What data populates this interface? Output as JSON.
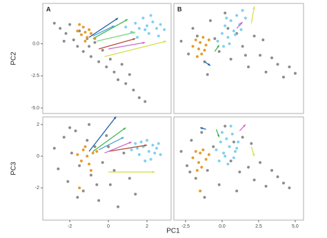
{
  "chart_data": [
    {
      "type": "scatter",
      "label": "A",
      "ylabel": "PC2",
      "xlim": [
        -3.4,
        3.25
      ],
      "ylim": [
        -5.43,
        3.14
      ],
      "yticks": [
        {
          "value": 0,
          "label": "0.0"
        },
        {
          "value": -2.5,
          "label": "-2.5"
        },
        {
          "value": -5,
          "label": "-5.0"
        }
      ],
      "series": [
        {
          "color": "#8c8c8c",
          "x": [
            -2.8,
            -2.5,
            -2.2,
            -2.0,
            -1.8,
            -1.6,
            -1.5,
            -1.3,
            -1.1,
            -0.9,
            -0.7,
            -0.5,
            -0.3,
            -0.1,
            0.1,
            0.3,
            0.5,
            0.7,
            0.9,
            1.1,
            1.3,
            1.6,
            1.9,
            -2.3,
            -1.0
          ],
          "values": [
            1.6,
            1.2,
            0.8,
            1.5,
            0.3,
            -0.2,
            1.0,
            -0.6,
            0.4,
            -1.0,
            0.1,
            -1.4,
            -0.5,
            -1.8,
            -1.2,
            -2.2,
            -2.8,
            -1.6,
            -3.1,
            -2.4,
            -3.6,
            -4.2,
            -4.5,
            0.2,
            -0.2
          ]
        },
        {
          "color": "#e69c2b",
          "x": [
            -1.6,
            -1.4,
            -1.3,
            -1.2,
            -1.1,
            -1.0,
            -0.9,
            -1.5,
            -0.7,
            -1.2
          ],
          "values": [
            1.0,
            0.7,
            1.3,
            0.9,
            0.5,
            1.1,
            0.8,
            1.5,
            0.4,
            0.2
          ]
        },
        {
          "color": "#7fd0f0",
          "x": [
            0.9,
            1.2,
            1.4,
            1.6,
            1.8,
            2.0,
            2.1,
            2.3,
            2.5,
            2.7,
            2.9,
            1.5,
            1.9,
            2.2,
            2.6
          ],
          "values": [
            1.3,
            0.9,
            1.6,
            1.2,
            2.0,
            1.4,
            0.8,
            1.7,
            1.2,
            1.5,
            1.1,
            0.5,
            1.1,
            2.2,
            0.6
          ]
        }
      ],
      "arrows": [
        {
          "color": "#1f5fa8",
          "x": [
            -1,
            0.5
          ],
          "y": [
            0.5,
            2.0
          ]
        },
        {
          "color": "#3cb44b",
          "x": [
            -0.8,
            1.0
          ],
          "y": [
            0.4,
            1.9
          ]
        },
        {
          "color": "#b5473a",
          "x": [
            -0.5,
            1.4
          ],
          "y": [
            -0.4,
            0.4
          ]
        },
        {
          "color": "#cc66cc",
          "x": [
            0,
            1.9
          ],
          "y": [
            -0.4,
            0.1
          ]
        },
        {
          "color": "#d4e04a",
          "x": [
            -0.2,
            3.0
          ],
          "y": [
            -1.0,
            0.2
          ]
        },
        {
          "color": "#7cd67c",
          "x": [
            -0.6,
            1.4
          ],
          "y": [
            0.2,
            0.9
          ]
        },
        {
          "color": "#4c9fd4",
          "x": [
            -0.8,
            0.3
          ],
          "y": [
            0.6,
            1.4
          ]
        }
      ]
    },
    {
      "type": "scatter",
      "label": "B",
      "xlim": [
        -3.3,
        5.57
      ],
      "ylim": [
        -5.43,
        3.14
      ],
      "series": [
        {
          "color": "#8c8c8c",
          "x": [
            -2.8,
            -2.3,
            -2.0,
            -1.7,
            -1.2,
            -0.8,
            -0.5,
            -0.2,
            0.2,
            0.6,
            1.0,
            1.4,
            1.8,
            2.2,
            2.6,
            3.0,
            3.4,
            3.8,
            4.2,
            4.6,
            5.0,
            -1.0,
            0.4,
            1.6,
            2.8
          ],
          "values": [
            0.2,
            -0.8,
            1.2,
            0.6,
            -1.4,
            1.8,
            0.4,
            -0.6,
            2.4,
            -1.2,
            0.8,
            -0.2,
            -1.8,
            0.6,
            -0.9,
            -2.2,
            -1.1,
            -1.6,
            -2.6,
            -1.8,
            -2.3,
            -2.4,
            1.2,
            -0.9,
            0.3
          ]
        },
        {
          "color": "#e69c2b",
          "x": [
            -2.0,
            -1.8,
            -1.6,
            -1.5,
            -1.4,
            -1.3,
            -1.1,
            -1.7,
            -0.9,
            -1.2
          ],
          "values": [
            -0.2,
            0.3,
            -0.4,
            0.1,
            -0.8,
            0.5,
            -0.1,
            -1.0,
            0.3,
            -0.5
          ]
        },
        {
          "color": "#7fd0f0",
          "x": [
            -0.3,
            0,
            0.2,
            0.4,
            0.6,
            0.8,
            1.0,
            1.2,
            1.4,
            1.6,
            0.1,
            0.5,
            0.9,
            1.3,
            0.3
          ],
          "values": [
            0.2,
            0.8,
            1.4,
            0.5,
            1.8,
            1.0,
            2.2,
            1.5,
            2.6,
            2.0,
            -0.2,
            0.0,
            0.7,
            1.1,
            2.0
          ]
        }
      ],
      "arrows": [
        {
          "color": "#d4e04a",
          "x": [
            2.0,
            2.2
          ],
          "y": [
            1.6,
            2.9
          ]
        },
        {
          "color": "#1f5fa8",
          "x": [
            -1.2,
            -0.8
          ],
          "y": [
            -1.4,
            -1.7
          ]
        },
        {
          "color": "#3cb44b",
          "x": [
            -0.5,
            -0.2
          ],
          "y": [
            -0.6,
            -0.1
          ]
        },
        {
          "color": "#cc66cc",
          "x": [
            1.0,
            1.4
          ],
          "y": [
            1.2,
            1.7
          ]
        }
      ]
    },
    {
      "type": "scatter",
      "ylabel": "PC3",
      "xlabel": "PC1",
      "xlim": [
        -3.4,
        3.25
      ],
      "ylim": [
        -4.04,
        2.48
      ],
      "xticks": [
        -2,
        0,
        2
      ],
      "yticks": [
        2,
        0,
        -2
      ],
      "series": [
        {
          "color": "#8c8c8c",
          "x": [
            -2.8,
            -2.6,
            -2.3,
            -2.1,
            -1.9,
            -1.7,
            -1.5,
            -1.3,
            -1.1,
            -0.9,
            -0.7,
            -0.5,
            -0.3,
            -0.1,
            0.1,
            0.3,
            0.5,
            0.8,
            1.1,
            1.4,
            -1.6,
            -0.6,
            0.0,
            -2.0,
            -1.0
          ],
          "values": [
            0.5,
            -0.8,
            1.2,
            -1.6,
            0.2,
            1.6,
            -0.6,
            -2.2,
            1.0,
            -1.2,
            0.6,
            -2.8,
            -0.4,
            1.3,
            -1.8,
            -0.9,
            -3.2,
            0.2,
            -1.4,
            -2.4,
            -2.6,
            -1.8,
            0.6,
            1.8,
            2.0
          ]
        },
        {
          "color": "#e69c2b",
          "x": [
            -1.6,
            -1.4,
            -1.3,
            -1.1,
            -1.0,
            -0.8,
            -0.6,
            -0.9,
            -1.5,
            -1.2
          ],
          "values": [
            0.1,
            -0.3,
            0.4,
            0.0,
            -0.5,
            0.2,
            0.3,
            -0.9,
            -2.0,
            0.6
          ]
        },
        {
          "color": "#7fd0f0",
          "x": [
            1.2,
            1.4,
            1.6,
            1.8,
            2.0,
            2.1,
            2.2,
            2.3,
            2.4,
            2.5,
            2.7,
            1.7,
            1.9,
            2.6,
            1.5
          ],
          "values": [
            0.4,
            0.8,
            0.1,
            0.6,
            1.0,
            0.3,
            -0.2,
            0.7,
            0.2,
            0.5,
            0.1,
            0.9,
            -0.3,
            0.8,
            0.5
          ]
        }
      ],
      "arrows": [
        {
          "color": "#1f5fa8",
          "x": [
            -1.0,
            0.4
          ],
          "y": [
            0.3,
            2.5
          ]
        },
        {
          "color": "#3cb44b",
          "x": [
            -0.8,
            0.9
          ],
          "y": [
            0.3,
            1.8
          ]
        },
        {
          "color": "#b5473a",
          "x": [
            0,
            2.0
          ],
          "y": [
            0.3,
            0.7
          ]
        },
        {
          "color": "#cc66cc",
          "x": [
            -0.2,
            1.2
          ],
          "y": [
            0.2,
            0.9
          ]
        },
        {
          "color": "#d4e04a",
          "x": [
            0,
            2.4
          ],
          "y": [
            -1.0,
            -1.0
          ]
        },
        {
          "color": "#4c9fd4",
          "x": [
            -0.5,
            0.8
          ],
          "y": [
            0.4,
            1.2
          ]
        }
      ]
    },
    {
      "type": "scatter",
      "xlim": [
        -3.3,
        5.57
      ],
      "ylim": [
        -4.04,
        2.48
      ],
      "xticks": [
        {
          "value": -2.5,
          "label": "-2.5"
        },
        {
          "value": 0,
          "label": "0.0"
        },
        {
          "value": 2.5,
          "label": "2.5"
        },
        {
          "value": 5,
          "label": "5.0"
        }
      ],
      "series": [
        {
          "color": "#8c8c8c",
          "x": [
            -2.8,
            -2.4,
            -2.1,
            -1.8,
            -1.4,
            -1.0,
            -0.6,
            -0.2,
            0.2,
            0.6,
            1.0,
            1.4,
            1.8,
            2.2,
            2.6,
            3.0,
            3.4,
            3.8,
            4.2,
            4.6,
            -1.2,
            0.8,
            2.0,
            -2.2,
            1.2
          ],
          "values": [
            0.3,
            -0.6,
            1.0,
            -1.4,
            1.5,
            -0.9,
            0.6,
            -1.8,
            1.9,
            -0.3,
            -2.2,
            1.2,
            -0.7,
            -1.5,
            -0.4,
            -1.9,
            -0.9,
            -1.3,
            -1.7,
            -2.0,
            -2.6,
            0.9,
            0.8,
            -1.0,
            -1.0
          ]
        },
        {
          "color": "#e69c2b",
          "x": [
            -2.0,
            -1.8,
            -1.6,
            -1.5,
            -1.4,
            -1.3,
            -1.1,
            -1.7,
            -0.9,
            -1.5
          ],
          "values": [
            -0.1,
            0.3,
            -0.4,
            0.2,
            -0.7,
            0.4,
            -0.2,
            -0.9,
            0.1,
            -2.2
          ]
        },
        {
          "color": "#7fd0f0",
          "x": [
            -0.4,
            -0.1,
            0.1,
            0.3,
            0.5,
            0.7,
            0.9,
            1.1,
            -0.2,
            0.4,
            0.8,
            0.0,
            0.6,
            1.0,
            0.2
          ],
          "values": [
            0.4,
            0.9,
            0.2,
            1.1,
            0.6,
            1.4,
            0.3,
            0.9,
            -0.3,
            -0.5,
            -0.1,
            1.5,
            1.9,
            0.5,
            0.0
          ]
        }
      ],
      "arrows": [
        {
          "color": "#1f5fa8",
          "x": [
            -1.1,
            -1.5
          ],
          "y": [
            1.7,
            1.8
          ]
        },
        {
          "color": "#3cb44b",
          "x": [
            -0.4,
            -0.2
          ],
          "y": [
            1.7,
            1.2
          ]
        },
        {
          "color": "#cc66cc",
          "x": [
            1.2,
            1.6
          ],
          "y": [
            1.6,
            2.0
          ]
        },
        {
          "color": "#d4e04a",
          "x": [
            2.0,
            2.2
          ],
          "y": [
            0.6,
            0.0
          ]
        }
      ]
    }
  ]
}
